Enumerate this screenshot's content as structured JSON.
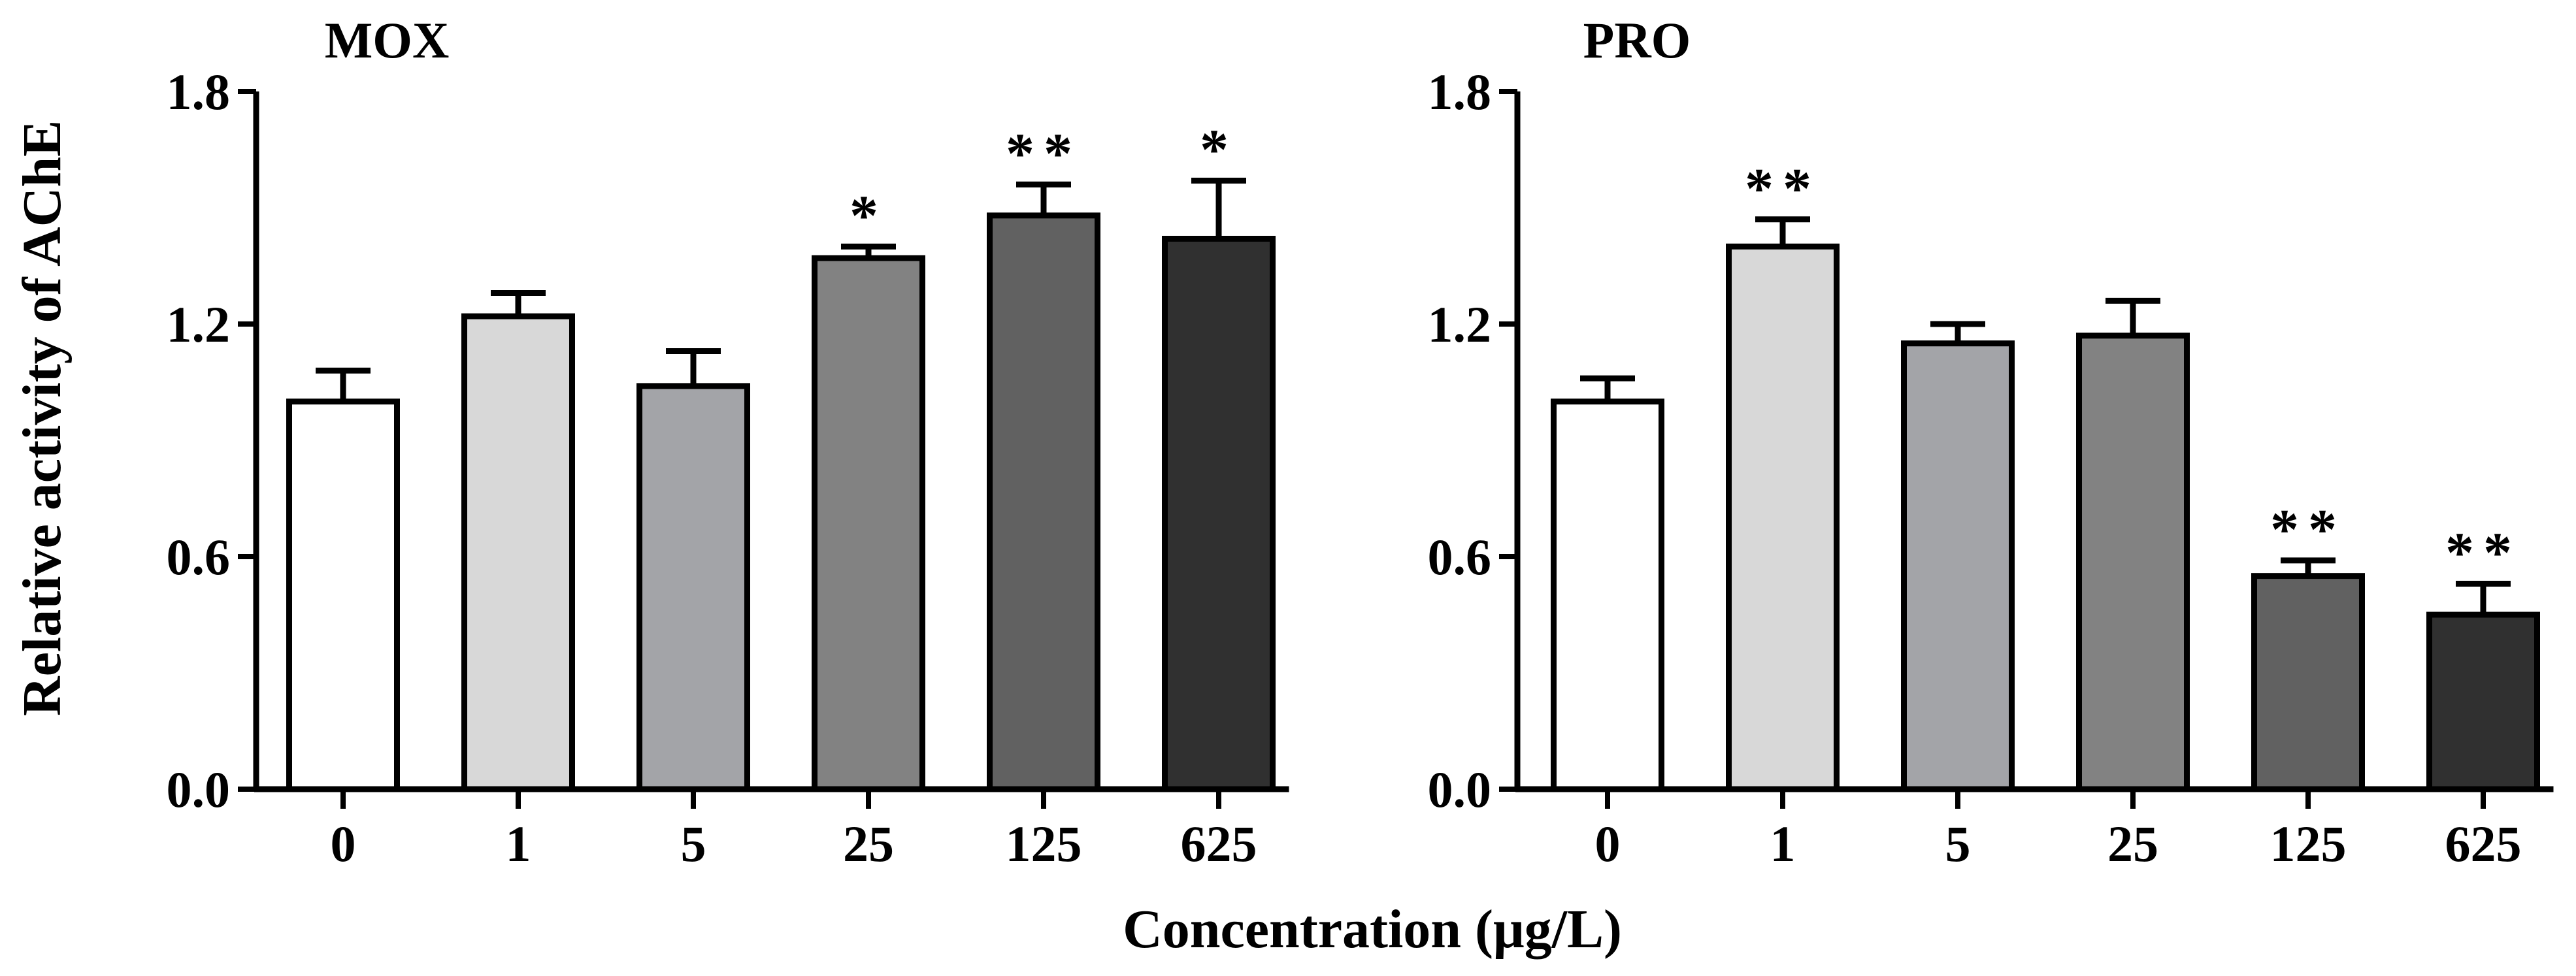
{
  "figure": {
    "ylabel": "Relative activity of AChE",
    "xlabel": "Concentration (μg/L)"
  },
  "chart_data": [
    {
      "type": "bar",
      "title": "MOX",
      "categories": [
        "0",
        "1",
        "5",
        "25",
        "125",
        "625"
      ],
      "values": [
        1.0,
        1.22,
        1.04,
        1.37,
        1.48,
        1.42
      ],
      "errors": [
        0.08,
        0.06,
        0.09,
        0.03,
        0.08,
        0.15
      ],
      "significance": [
        "",
        "",
        "",
        "*",
        "**",
        "*"
      ],
      "bar_colors": [
        "#ffffff",
        "#d8d8d8",
        "#a3a4a8",
        "#828282",
        "#616161",
        "#303030"
      ],
      "xlabel": "Concentration (μg/L)",
      "ylabel": "Relative activity of AChE",
      "ylim": [
        0,
        1.8
      ],
      "yticks": [
        "0.0",
        "0.6",
        "1.2",
        "1.8"
      ]
    },
    {
      "type": "bar",
      "title": "PRO",
      "categories": [
        "0",
        "1",
        "5",
        "25",
        "125",
        "625"
      ],
      "values": [
        1.0,
        1.4,
        1.15,
        1.17,
        0.55,
        0.45
      ],
      "errors": [
        0.06,
        0.07,
        0.05,
        0.09,
        0.04,
        0.08
      ],
      "significance": [
        "",
        "**",
        "",
        "",
        "**",
        "**"
      ],
      "bar_colors": [
        "#ffffff",
        "#d8d8d8",
        "#a3a4a8",
        "#828282",
        "#616161",
        "#303030"
      ],
      "xlabel": "Concentration (μg/L)",
      "ylabel": "Relative activity of AChE",
      "ylim": [
        0,
        1.8
      ],
      "yticks": [
        "0.0",
        "0.6",
        "1.2",
        "1.8"
      ]
    }
  ]
}
